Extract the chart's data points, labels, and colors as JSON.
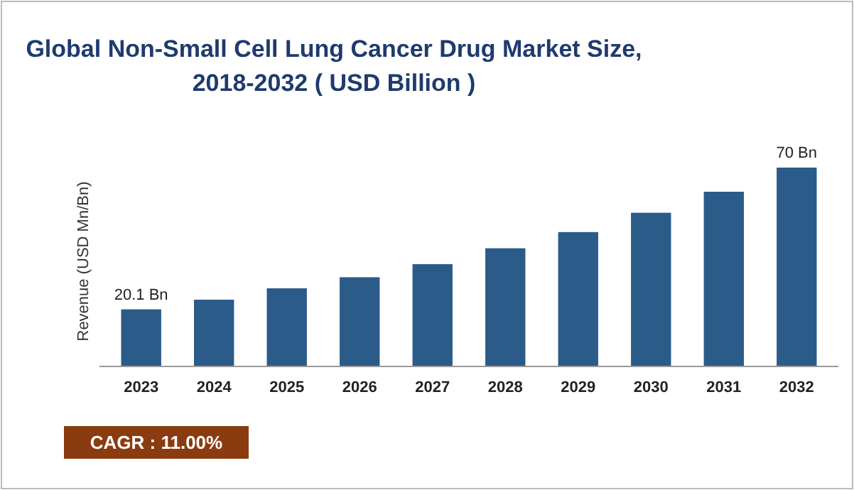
{
  "chart_data": {
    "type": "bar",
    "title": "Global Non-Small Cell Lung Cancer Drug Market Size,\n2018-2032 ( USD Billion )",
    "ylabel": "Revenue (USD Mn/Bn)",
    "categories": [
      "2023",
      "2024",
      "2025",
      "2026",
      "2027",
      "2028",
      "2029",
      "2030",
      "2031",
      "2032"
    ],
    "values": [
      20.1,
      23.5,
      27.5,
      31.4,
      36.0,
      41.6,
      47.3,
      54.1,
      61.5,
      70
    ],
    "value_labels": [
      "20.1 Bn",
      null,
      null,
      null,
      null,
      null,
      null,
      null,
      null,
      "70 Bn"
    ],
    "color": "#2b5b89",
    "annotations": [
      "CAGR : 11.00%"
    ]
  }
}
